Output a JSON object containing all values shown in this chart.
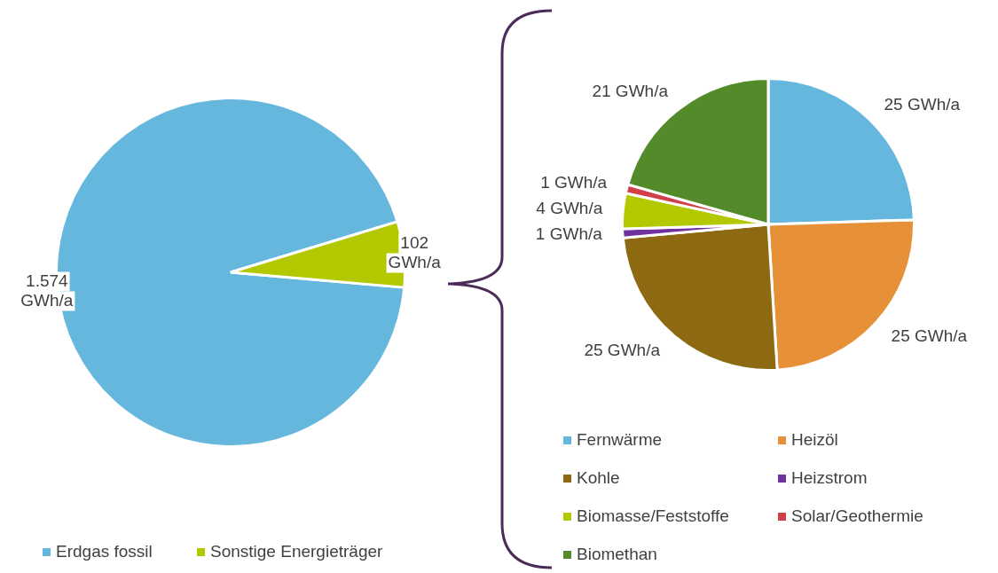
{
  "chart_data": [
    {
      "type": "pie",
      "categories": [
        "Erdgas fossil",
        "Sonstige Energieträger"
      ],
      "values": [
        1574,
        102
      ],
      "colors": [
        "#65b7dd",
        "#b4c800"
      ],
      "value_labels": [
        "1.574 GWh/a",
        "102 GWh/a"
      ],
      "legend": "bottom"
    },
    {
      "type": "pie",
      "categories": [
        "Fernwärme",
        "Heizöl",
        "Kohle",
        "Heizstrom",
        "Biomasse/Feststoffe",
        "Solar/Geothermie",
        "Biomethan"
      ],
      "values": [
        25,
        25,
        25,
        1,
        4,
        1,
        21
      ],
      "colors": [
        "#65b7dd",
        "#e69138",
        "#8d6a12",
        "#7030a0",
        "#b4c800",
        "#d0404a",
        "#548b2a"
      ],
      "value_labels": [
        "25 GWh/a",
        "25 GWh/a",
        "25 GWh/a",
        "1 GWh/a",
        "4 GWh/a",
        "1 GWh/a",
        "21 GWh/a"
      ],
      "legend": "bottom"
    }
  ]
}
